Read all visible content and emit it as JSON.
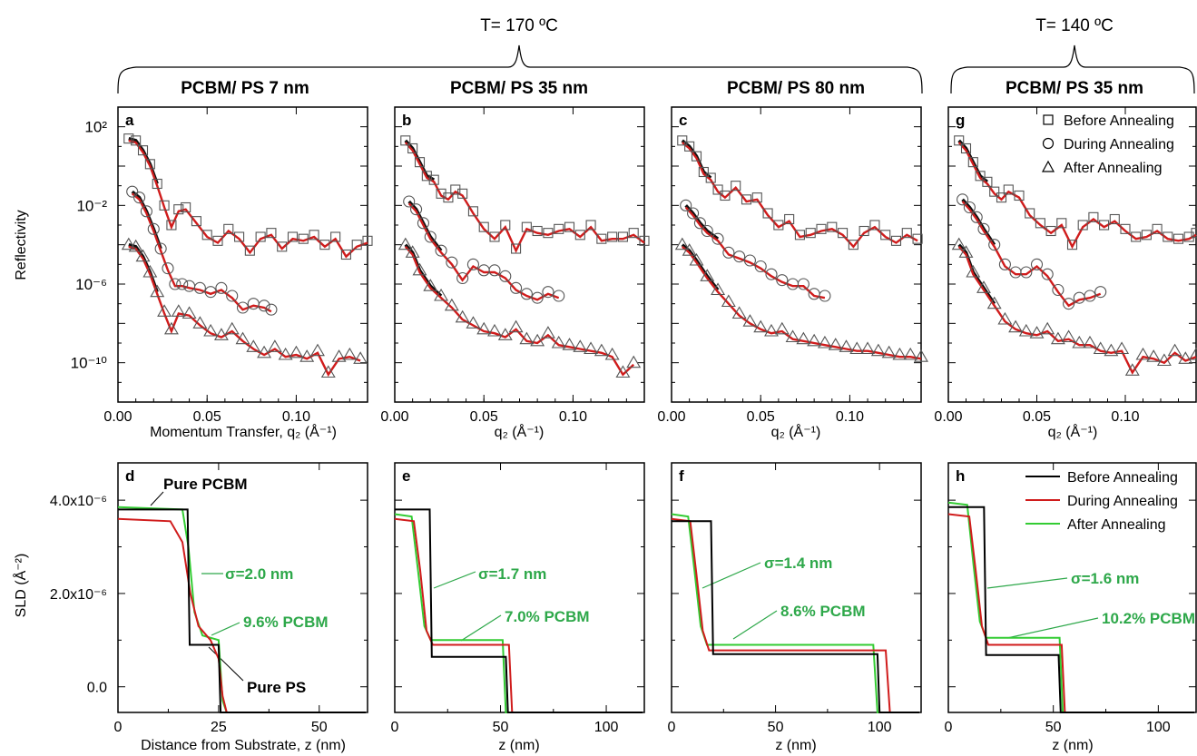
{
  "header": {
    "temp_170": "T= 170  ºC",
    "temp_140": "T= 140  ºC",
    "sample_7": "PCBM/ PS 7 nm",
    "sample_35": "PCBM/ PS 35 nm",
    "sample_80": "PCBM/ PS 80 nm",
    "sample_35b": "PCBM/ PS 35 nm"
  },
  "labels": {
    "refl_ylabel": "Reflectivity",
    "sld_ylabel": "SLD (Å⁻²)",
    "qz_long": "Momentum Transfer, q₂ (Å⁻¹)",
    "qz_short": "q₂ (Å⁻¹)",
    "z_long": "Distance from Substrate, z (nm)",
    "z_short": "z (nm)"
  },
  "legend_refl": [
    "Before Annealing",
    "During Annealing",
    "After Annealing"
  ],
  "legend_sld": [
    "Before Annealing",
    "During Annealing",
    "After Annealing"
  ],
  "annot": {
    "pure_pcbm": "Pure PCBM",
    "pure_ps": "Pure PS",
    "sigma_d": "σ=2.0 nm",
    "pct_d": "9.6% PCBM",
    "sigma_e": "σ=1.7 nm",
    "pct_e": "7.0% PCBM",
    "sigma_f": "σ=1.4 nm",
    "pct_f": "8.6% PCBM",
    "sigma_h": "σ=1.6 nm",
    "pct_h": "10.2% PCBM"
  },
  "colors": {
    "before": "#000000",
    "during": "#d01c1c",
    "after": "#33cc33",
    "fit": "#d01c1c",
    "annot_green": "#2ea84a"
  },
  "chart_data": [
    {
      "type": "scatter",
      "panel": "a",
      "title": "PCBM/ PS 7 nm",
      "xlabel": "Momentum Transfer, q₂ (Å⁻¹)",
      "ylabel": "Reflectivity",
      "xlim": [
        0,
        0.14
      ],
      "ylim_log10": [
        -12,
        3
      ],
      "log_y": true,
      "xticks": [
        "0.00",
        "0.05",
        "0.10"
      ],
      "yticks": [
        "10²",
        "10⁻²",
        "10⁻⁶",
        "10⁻¹⁰"
      ],
      "series": [
        {
          "name": "Before Annealing",
          "marker": "square",
          "x": [
            0.006,
            0.01,
            0.014,
            0.018,
            0.022,
            0.026,
            0.03,
            0.034,
            0.038,
            0.044,
            0.05,
            0.056,
            0.062,
            0.068,
            0.074,
            0.08,
            0.086,
            0.092,
            0.098,
            0.104,
            0.11,
            0.116,
            0.122,
            0.128,
            0.134,
            0.14
          ],
          "y": [
            1.4,
            1.3,
            0.8,
            0.1,
            -0.9,
            -2.0,
            -3.0,
            -2.2,
            -2.1,
            -2.8,
            -3.5,
            -3.8,
            -3.2,
            -3.6,
            -4.3,
            -3.6,
            -3.4,
            -4.1,
            -3.6,
            -3.7,
            -3.5,
            -4.0,
            -3.6,
            -4.5,
            -4.0,
            -3.8
          ]
        },
        {
          "name": "During Annealing",
          "marker": "circle",
          "x": [
            0.008,
            0.012,
            0.016,
            0.02,
            0.024,
            0.028,
            0.032,
            0.036,
            0.04,
            0.046,
            0.052,
            0.058,
            0.064,
            0.07,
            0.076,
            0.082,
            0.086
          ],
          "y": [
            -1.3,
            -1.6,
            -2.3,
            -3.2,
            -4.2,
            -5.2,
            -6.0,
            -6.0,
            -6.1,
            -6.2,
            -6.4,
            -6.2,
            -6.6,
            -7.2,
            -7.0,
            -7.1,
            -7.3
          ]
        },
        {
          "name": "After Annealing",
          "marker": "triangle",
          "x": [
            0.006,
            0.01,
            0.014,
            0.018,
            0.022,
            0.026,
            0.03,
            0.034,
            0.04,
            0.046,
            0.052,
            0.058,
            0.064,
            0.07,
            0.076,
            0.082,
            0.088,
            0.094,
            0.1,
            0.106,
            0.112,
            0.118,
            0.124,
            0.13,
            0.136
          ],
          "y": [
            -4.0,
            -4.1,
            -4.6,
            -5.4,
            -6.4,
            -7.4,
            -8.3,
            -7.4,
            -7.5,
            -8.0,
            -8.4,
            -8.6,
            -8.3,
            -8.8,
            -9.2,
            -9.5,
            -9.2,
            -9.6,
            -9.5,
            -9.7,
            -9.4,
            -10.5,
            -9.7,
            -9.6,
            -9.8
          ]
        }
      ]
    },
    {
      "type": "scatter",
      "panel": "b",
      "title": "PCBM/ PS 35 nm",
      "xlabel": "q₂ (Å⁻¹)",
      "xlim": [
        0,
        0.14
      ],
      "ylim_log10": [
        -12,
        3
      ],
      "log_y": true,
      "xticks": [
        "0.00",
        "0.05",
        "0.10"
      ],
      "series": [
        {
          "name": "Before Annealing",
          "marker": "square",
          "x": [
            0.006,
            0.01,
            0.014,
            0.018,
            0.022,
            0.026,
            0.03,
            0.034,
            0.038,
            0.044,
            0.05,
            0.056,
            0.062,
            0.068,
            0.074,
            0.08,
            0.086,
            0.092,
            0.098,
            0.104,
            0.11,
            0.116,
            0.122,
            0.128,
            0.134,
            0.14
          ],
          "y": [
            1.3,
            0.9,
            0.2,
            -0.5,
            -0.7,
            -1.4,
            -1.6,
            -1.2,
            -1.4,
            -2.3,
            -3.1,
            -3.6,
            -3.0,
            -4.2,
            -3.1,
            -3.3,
            -3.4,
            -3.2,
            -3.1,
            -3.5,
            -3.0,
            -3.7,
            -3.6,
            -3.6,
            -3.4,
            -3.8
          ]
        },
        {
          "name": "During Annealing",
          "marker": "circle",
          "x": [
            0.008,
            0.012,
            0.016,
            0.02,
            0.026,
            0.032,
            0.038,
            0.044,
            0.05,
            0.056,
            0.062,
            0.068,
            0.074,
            0.08,
            0.086,
            0.092
          ],
          "y": [
            -1.8,
            -2.2,
            -2.9,
            -3.6,
            -4.3,
            -4.9,
            -5.7,
            -5.0,
            -5.3,
            -5.3,
            -5.6,
            -6.2,
            -6.5,
            -6.7,
            -6.4,
            -6.6
          ]
        },
        {
          "name": "After Annealing",
          "marker": "triangle",
          "x": [
            0.006,
            0.01,
            0.014,
            0.02,
            0.026,
            0.032,
            0.038,
            0.044,
            0.05,
            0.056,
            0.062,
            0.068,
            0.074,
            0.08,
            0.086,
            0.092,
            0.098,
            0.104,
            0.11,
            0.116,
            0.122,
            0.128,
            0.134
          ],
          "y": [
            -4.0,
            -4.4,
            -5.3,
            -6.1,
            -6.6,
            -7.1,
            -7.7,
            -8.0,
            -8.3,
            -8.4,
            -8.6,
            -8.2,
            -8.8,
            -8.9,
            -8.5,
            -9.0,
            -9.1,
            -9.2,
            -9.3,
            -9.4,
            -9.6,
            -10.5,
            -10.0
          ]
        }
      ]
    },
    {
      "type": "scatter",
      "panel": "c",
      "title": "PCBM/ PS 80 nm",
      "xlabel": "q₂ (Å⁻¹)",
      "xlim": [
        0,
        0.14
      ],
      "ylim_log10": [
        -12,
        3
      ],
      "log_y": true,
      "xticks": [
        "0.00",
        "0.05",
        "0.10"
      ],
      "series": [
        {
          "name": "Before Annealing",
          "marker": "square",
          "x": [
            0.006,
            0.01,
            0.014,
            0.018,
            0.022,
            0.026,
            0.03,
            0.036,
            0.042,
            0.048,
            0.054,
            0.06,
            0.066,
            0.072,
            0.078,
            0.084,
            0.09,
            0.096,
            0.102,
            0.108,
            0.114,
            0.12,
            0.126,
            0.132,
            0.138
          ],
          "y": [
            1.3,
            1.0,
            0.5,
            -0.3,
            -0.6,
            -1.2,
            -1.5,
            -1.0,
            -1.7,
            -1.6,
            -2.4,
            -3.0,
            -2.7,
            -3.5,
            -3.4,
            -3.2,
            -3.1,
            -3.4,
            -4.0,
            -3.3,
            -3.0,
            -3.5,
            -3.8,
            -3.4,
            -3.7
          ]
        },
        {
          "name": "During Annealing",
          "marker": "circle",
          "x": [
            0.008,
            0.012,
            0.016,
            0.02,
            0.026,
            0.032,
            0.038,
            0.044,
            0.05,
            0.056,
            0.062,
            0.068,
            0.074,
            0.08,
            0.086
          ],
          "y": [
            -2.0,
            -2.4,
            -2.9,
            -3.3,
            -3.7,
            -4.4,
            -4.6,
            -4.8,
            -5.1,
            -5.5,
            -5.8,
            -6.0,
            -6.0,
            -6.5,
            -6.6
          ]
        },
        {
          "name": "After Annealing",
          "marker": "triangle",
          "x": [
            0.006,
            0.01,
            0.014,
            0.02,
            0.026,
            0.032,
            0.038,
            0.044,
            0.05,
            0.056,
            0.062,
            0.068,
            0.074,
            0.08,
            0.086,
            0.092,
            0.098,
            0.104,
            0.11,
            0.116,
            0.122,
            0.128,
            0.134,
            0.14
          ],
          "y": [
            -4.0,
            -4.3,
            -4.8,
            -5.6,
            -6.3,
            -6.9,
            -7.5,
            -7.9,
            -8.2,
            -8.4,
            -8.3,
            -8.7,
            -8.8,
            -8.9,
            -9.0,
            -9.1,
            -9.2,
            -9.3,
            -9.3,
            -9.4,
            -9.5,
            -9.6,
            -9.6,
            -9.7
          ]
        }
      ]
    },
    {
      "type": "scatter",
      "panel": "g",
      "title": "PCBM/ PS 35 nm",
      "xlabel": "q₂ (Å⁻¹)",
      "xlim": [
        0,
        0.14
      ],
      "ylim_log10": [
        -12,
        3
      ],
      "log_y": true,
      "xticks": [
        "0.00",
        "0.05",
        "0.10"
      ],
      "series": [
        {
          "name": "Before Annealing",
          "marker": "square",
          "x": [
            0.006,
            0.01,
            0.014,
            0.018,
            0.022,
            0.026,
            0.03,
            0.034,
            0.04,
            0.046,
            0.052,
            0.058,
            0.064,
            0.07,
            0.076,
            0.082,
            0.088,
            0.094,
            0.1,
            0.106,
            0.112,
            0.118,
            0.124,
            0.13,
            0.136,
            0.14
          ],
          "y": [
            1.3,
            0.9,
            0.2,
            -0.5,
            -0.8,
            -1.3,
            -1.6,
            -1.2,
            -1.5,
            -2.4,
            -2.9,
            -3.3,
            -2.9,
            -4.0,
            -3.0,
            -2.6,
            -3.0,
            -2.7,
            -3.2,
            -3.6,
            -3.5,
            -3.2,
            -3.6,
            -3.7,
            -3.6,
            -3.4
          ]
        },
        {
          "name": "During Annealing",
          "marker": "circle",
          "x": [
            0.008,
            0.012,
            0.016,
            0.02,
            0.026,
            0.032,
            0.038,
            0.044,
            0.05,
            0.056,
            0.062,
            0.068,
            0.074,
            0.08,
            0.086
          ],
          "y": [
            -1.7,
            -2.1,
            -2.6,
            -3.2,
            -4.0,
            -5.0,
            -5.4,
            -5.4,
            -5.0,
            -5.5,
            -6.3,
            -7.0,
            -6.7,
            -6.6,
            -6.4
          ]
        },
        {
          "name": "After Annealing",
          "marker": "triangle",
          "x": [
            0.006,
            0.01,
            0.014,
            0.02,
            0.026,
            0.032,
            0.038,
            0.044,
            0.05,
            0.056,
            0.062,
            0.068,
            0.074,
            0.08,
            0.086,
            0.092,
            0.098,
            0.104,
            0.11,
            0.116,
            0.122,
            0.128,
            0.134,
            0.14
          ],
          "y": [
            -4.0,
            -4.4,
            -5.4,
            -6.2,
            -7.0,
            -7.8,
            -8.2,
            -8.4,
            -8.5,
            -8.3,
            -8.8,
            -8.7,
            -9.0,
            -9.0,
            -9.3,
            -9.4,
            -9.3,
            -10.4,
            -9.6,
            -9.7,
            -9.9,
            -9.4,
            -9.8,
            -9.6
          ]
        }
      ]
    },
    {
      "type": "line",
      "panel": "d",
      "xlabel": "Distance from Substrate, z (nm)",
      "ylabel": "SLD (Å⁻²)",
      "xlim": [
        0,
        62
      ],
      "ylim": [
        -5.5e-07,
        4.8e-06
      ],
      "xticks": [
        "0",
        "25",
        "50"
      ],
      "yticks": [
        "0.0",
        "2.0x10⁻⁶",
        "4.0x10⁻⁶"
      ],
      "series": [
        {
          "name": "Before Annealing",
          "x": [
            0,
            17.3,
            17.8,
            25.0,
            25.5,
            27
          ],
          "y": [
            3.8e-06,
            3.8e-06,
            9e-07,
            9e-07,
            -5.5e-07,
            -5.5e-07
          ]
        },
        {
          "name": "During Annealing",
          "x": [
            0,
            13,
            16,
            18,
            20,
            23,
            25,
            26,
            27
          ],
          "y": [
            3.6e-06,
            3.55e-06,
            3.1e-06,
            2e-06,
            1.3e-06,
            1e-06,
            6e-07,
            -2e-07,
            -5.5e-07
          ]
        },
        {
          "name": "After Annealing",
          "x": [
            0,
            16,
            17.5,
            19,
            21,
            25,
            26,
            27
          ],
          "y": [
            3.85e-06,
            3.8e-06,
            3e-06,
            1.6e-06,
            1.1e-06,
            1e-06,
            -3e-07,
            -5.5e-07
          ]
        }
      ]
    },
    {
      "type": "line",
      "panel": "e",
      "xlabel": "z (nm)",
      "xlim": [
        0,
        118
      ],
      "ylim": [
        -5.5e-07,
        4.8e-06
      ],
      "xticks": [
        "0",
        "50",
        "100"
      ],
      "series": [
        {
          "name": "Before Annealing",
          "x": [
            0,
            16.5,
            17.5,
            52.5,
            53.5,
            55
          ],
          "y": [
            3.8e-06,
            3.8e-06,
            6.4e-07,
            6.4e-07,
            -5.5e-07,
            -5.5e-07
          ]
        },
        {
          "name": "During Annealing",
          "x": [
            0,
            9,
            12,
            15,
            18,
            54,
            55.5,
            57
          ],
          "y": [
            3.6e-06,
            3.55e-06,
            2.5e-06,
            1.2e-06,
            9e-07,
            9e-07,
            -5.5e-07,
            -5.5e-07
          ]
        },
        {
          "name": "After Annealing",
          "x": [
            0,
            8,
            11,
            14,
            17,
            51,
            52.5,
            54
          ],
          "y": [
            3.7e-06,
            3.65e-06,
            2.5e-06,
            1.3e-06,
            1e-06,
            1e-06,
            -5.5e-07,
            -5.5e-07
          ]
        }
      ]
    },
    {
      "type": "line",
      "panel": "f",
      "xlabel": "z (nm)",
      "xlim": [
        0,
        120
      ],
      "ylim": [
        -5.5e-07,
        4.8e-06
      ],
      "xticks": [
        "0",
        "50",
        "100"
      ],
      "series": [
        {
          "name": "Before Annealing",
          "x": [
            0,
            19,
            20,
            99,
            100,
            102
          ],
          "y": [
            3.55e-06,
            3.55e-06,
            7e-07,
            7e-07,
            -5.5e-07,
            -5.5e-07
          ]
        },
        {
          "name": "During Annealing",
          "x": [
            0,
            9,
            12,
            15,
            18,
            103,
            105,
            107
          ],
          "y": [
            3.6e-06,
            3.55e-06,
            2.4e-06,
            1.2e-06,
            7.8e-07,
            7.8e-07,
            -5.5e-07,
            -5.5e-07
          ]
        },
        {
          "name": "After Annealing",
          "x": [
            0,
            8,
            11,
            14,
            17,
            97,
            99,
            101
          ],
          "y": [
            3.7e-06,
            3.65e-06,
            2.5e-06,
            1.3e-06,
            9e-07,
            9e-07,
            -5.5e-07,
            -5.5e-07
          ]
        }
      ]
    },
    {
      "type": "line",
      "panel": "h",
      "xlabel": "z (nm)",
      "xlim": [
        0,
        118
      ],
      "ylim": [
        -5.5e-07,
        4.8e-06
      ],
      "xticks": [
        "0",
        "50",
        "100"
      ],
      "series": [
        {
          "name": "Before Annealing",
          "x": [
            0,
            17,
            18,
            52.5,
            53.5,
            55
          ],
          "y": [
            3.85e-06,
            3.85e-06,
            6.8e-07,
            6.8e-07,
            -5.5e-07,
            -5.5e-07
          ]
        },
        {
          "name": "During Annealing",
          "x": [
            0,
            10,
            13,
            16,
            19,
            54,
            55.5,
            57
          ],
          "y": [
            3.7e-06,
            3.65e-06,
            2.5e-06,
            1.3e-06,
            9e-07,
            9e-07,
            -5.5e-07,
            -5.5e-07
          ]
        },
        {
          "name": "After Annealing",
          "x": [
            0,
            9,
            12,
            15,
            18,
            53,
            54.5,
            56
          ],
          "y": [
            3.95e-06,
            3.9e-06,
            2.6e-06,
            1.4e-06,
            1.05e-06,
            1.05e-06,
            -5.5e-07,
            -5.5e-07
          ]
        }
      ]
    }
  ]
}
